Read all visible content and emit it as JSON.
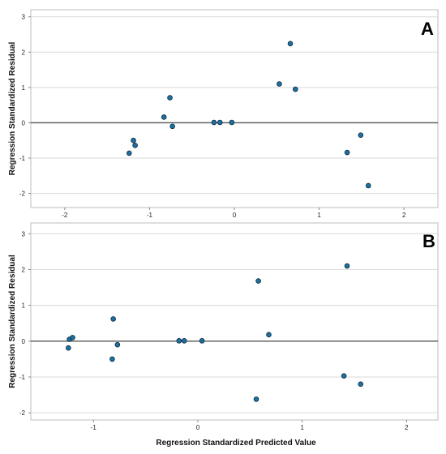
{
  "chart_data": [
    {
      "type": "scatter",
      "panel_label": "A",
      "ylabel": "Regression Standardized Residual",
      "xlabel": "",
      "xlim": [
        -2.4,
        2.4
      ],
      "ylim": [
        -2.4,
        3.2
      ],
      "xticks": [
        -2,
        -1,
        0,
        1,
        2
      ],
      "yticks": [
        -2,
        -1,
        0,
        1,
        2,
        3
      ],
      "grid": "horizontal",
      "reference_line_y": 0,
      "marker_color": "#1f6f9f",
      "points": [
        {
          "x": -1.24,
          "y": -0.86
        },
        {
          "x": -1.19,
          "y": -0.5
        },
        {
          "x": -1.17,
          "y": -0.64
        },
        {
          "x": -0.83,
          "y": 0.16
        },
        {
          "x": -0.76,
          "y": 0.71
        },
        {
          "x": -0.73,
          "y": -0.1
        },
        {
          "x": -0.24,
          "y": 0.01
        },
        {
          "x": -0.17,
          "y": 0.01
        },
        {
          "x": -0.03,
          "y": 0.01
        },
        {
          "x": 0.53,
          "y": 1.1
        },
        {
          "x": 0.66,
          "y": 2.24
        },
        {
          "x": 0.72,
          "y": 0.95
        },
        {
          "x": 1.33,
          "y": -0.84
        },
        {
          "x": 1.49,
          "y": -0.35
        },
        {
          "x": 1.58,
          "y": -1.78
        }
      ]
    },
    {
      "type": "scatter",
      "panel_label": "B",
      "ylabel": "Regression Standardized Residual",
      "xlabel": "Regression Standardized Predicted Value",
      "xlim": [
        -1.6,
        2.3
      ],
      "ylim": [
        -2.2,
        3.3
      ],
      "xticks": [
        -1,
        0,
        1,
        2
      ],
      "yticks": [
        -2,
        -1,
        0,
        1,
        2,
        3
      ],
      "grid": "horizontal",
      "reference_line_y": 0,
      "marker_color": "#1f6f9f",
      "points": [
        {
          "x": -1.24,
          "y": -0.19
        },
        {
          "x": -1.23,
          "y": 0.05
        },
        {
          "x": -1.2,
          "y": 0.1
        },
        {
          "x": -0.82,
          "y": -0.5
        },
        {
          "x": -0.81,
          "y": 0.62
        },
        {
          "x": -0.77,
          "y": -0.1
        },
        {
          "x": -0.18,
          "y": 0.01
        },
        {
          "x": -0.13,
          "y": 0.01
        },
        {
          "x": 0.04,
          "y": 0.01
        },
        {
          "x": 0.56,
          "y": -1.62
        },
        {
          "x": 0.58,
          "y": 1.68
        },
        {
          "x": 0.68,
          "y": 0.18
        },
        {
          "x": 1.4,
          "y": -0.97
        },
        {
          "x": 1.43,
          "y": 2.1
        },
        {
          "x": 1.56,
          "y": -1.2
        }
      ]
    }
  ]
}
